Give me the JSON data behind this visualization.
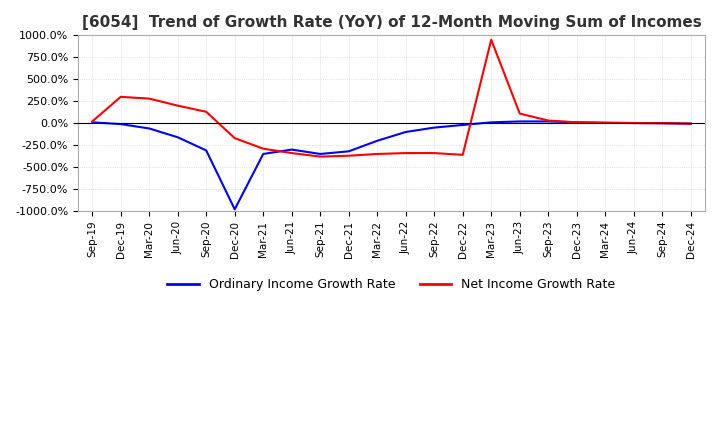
{
  "title": "[6054]  Trend of Growth Rate (YoY) of 12-Month Moving Sum of Incomes",
  "title_fontsize": 11,
  "ylim": [
    -1000,
    1000
  ],
  "yticks": [
    1000,
    750,
    500,
    250,
    0,
    -250,
    -500,
    -750,
    -1000
  ],
  "background_color": "#ffffff",
  "grid_color": "#c8c8c8",
  "legend_labels": [
    "Ordinary Income Growth Rate",
    "Net Income Growth Rate"
  ],
  "legend_colors": [
    "#0000ff",
    "#ff0000"
  ],
  "x_labels": [
    "Sep-19",
    "Dec-19",
    "Mar-20",
    "Jun-20",
    "Sep-20",
    "Dec-20",
    "Mar-21",
    "Jun-21",
    "Sep-21",
    "Dec-21",
    "Mar-22",
    "Jun-22",
    "Sep-22",
    "Dec-22",
    "Mar-23",
    "Jun-23",
    "Sep-23",
    "Dec-23",
    "Mar-24",
    "Jun-24",
    "Sep-24",
    "Dec-24"
  ],
  "ordinary_income": [
    10,
    -10,
    -60,
    -160,
    -310,
    -980,
    -350,
    -300,
    -350,
    -320,
    -200,
    -100,
    -50,
    -20,
    10,
    20,
    20,
    10,
    5,
    2,
    0,
    -5
  ],
  "net_income": [
    20,
    300,
    280,
    200,
    130,
    -170,
    -290,
    -340,
    -380,
    -370,
    -350,
    -340,
    -340,
    -360,
    950,
    110,
    30,
    10,
    5,
    2,
    0,
    -5
  ]
}
